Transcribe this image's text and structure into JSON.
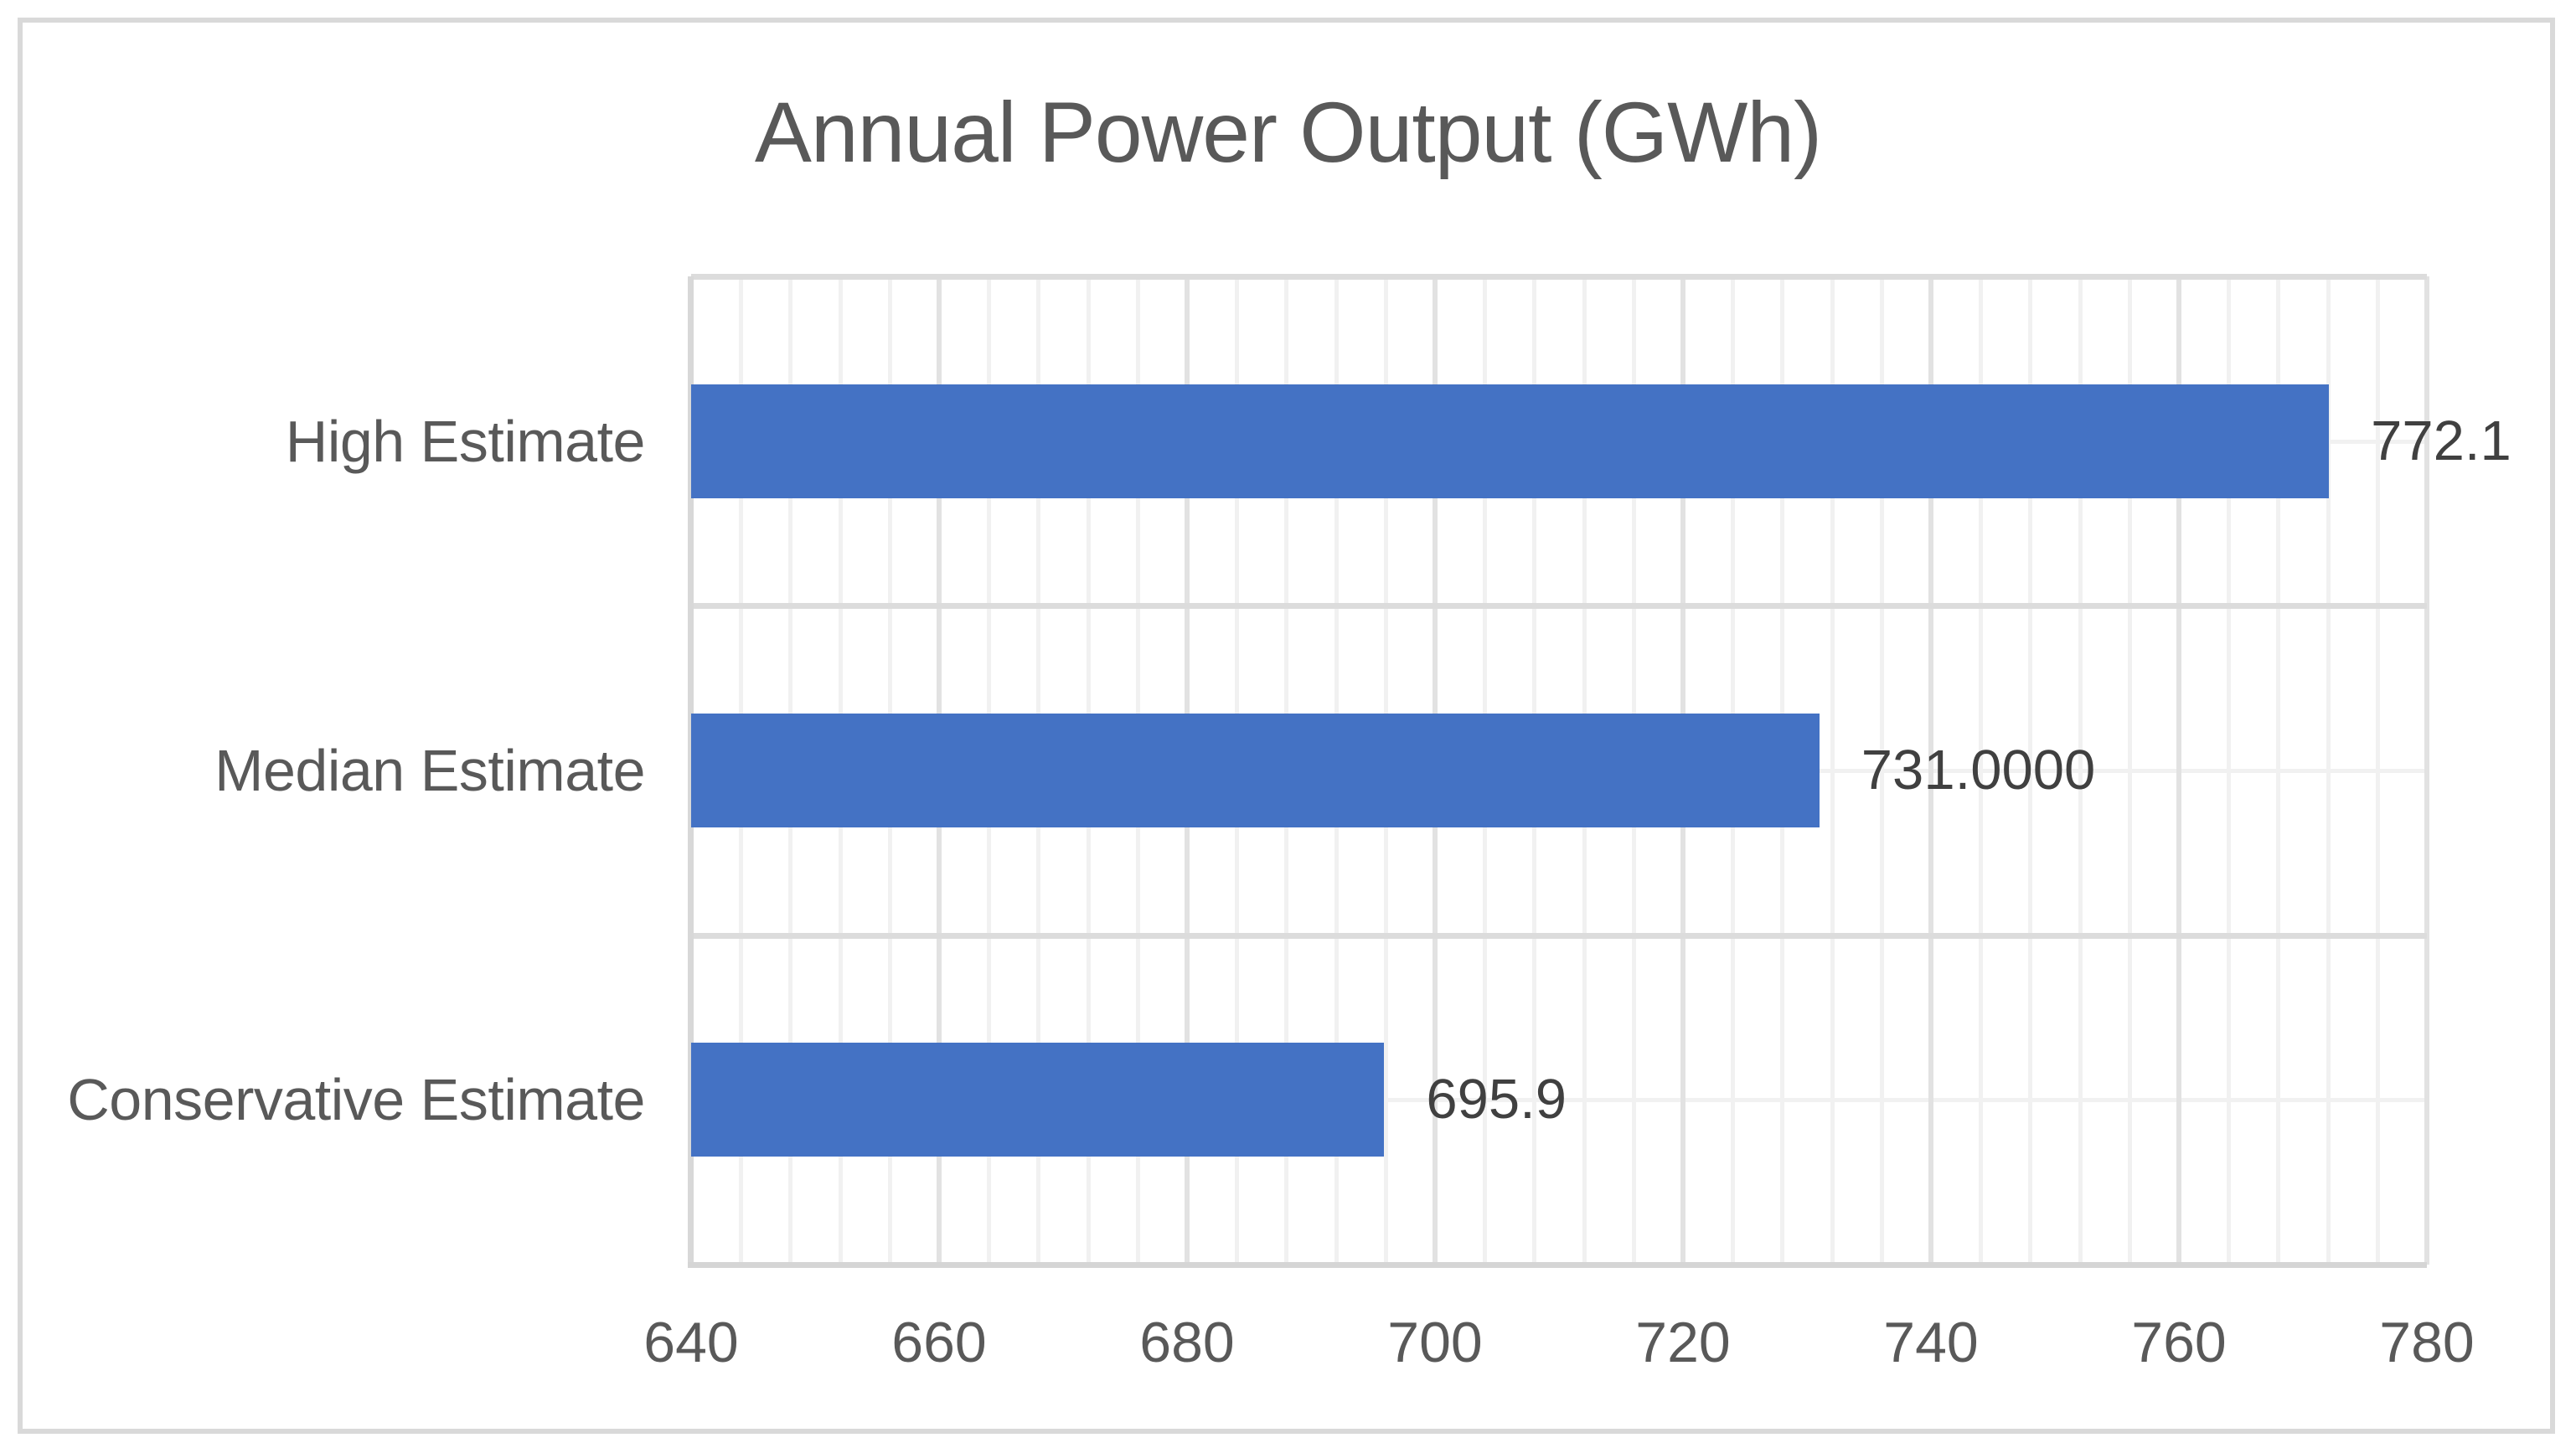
{
  "title": "Annual Power Output (GWh)",
  "chart_data": {
    "type": "bar",
    "orientation": "horizontal",
    "title": "Annual Power Output (GWh)",
    "categories": [
      "High Estimate",
      "Median Estimate",
      "Conservative Estimate"
    ],
    "series": [
      {
        "name": "Annual Power Output",
        "values": [
          772.1,
          731,
          695.9
        ],
        "data_labels": [
          "772.1",
          "731.0000",
          "695.9"
        ]
      }
    ],
    "xlabel": "",
    "ylabel": "",
    "xlim": [
      640,
      780
    ],
    "x_major_ticks": [
      640,
      660,
      680,
      700,
      720,
      740,
      760,
      780
    ],
    "x_major_unit": 20,
    "x_minor_unit": 4,
    "grid": "vertical major and minor gridlines; horizontal lines at category boundaries and centers",
    "legend": "none",
    "colors": {
      "bar": "#4472c4",
      "major_gridline": "#e2e2e2",
      "minor_gridline": "#f1f1f1",
      "boundary_gridline": "#dcdcdc",
      "axis_line": "#d5d5d5",
      "axis_text": "#595959",
      "category_text": "#595959",
      "data_label_text": "#404040",
      "title_text": "#595959",
      "chart_border": "#d9d9d9",
      "background": "#ffffff"
    }
  }
}
